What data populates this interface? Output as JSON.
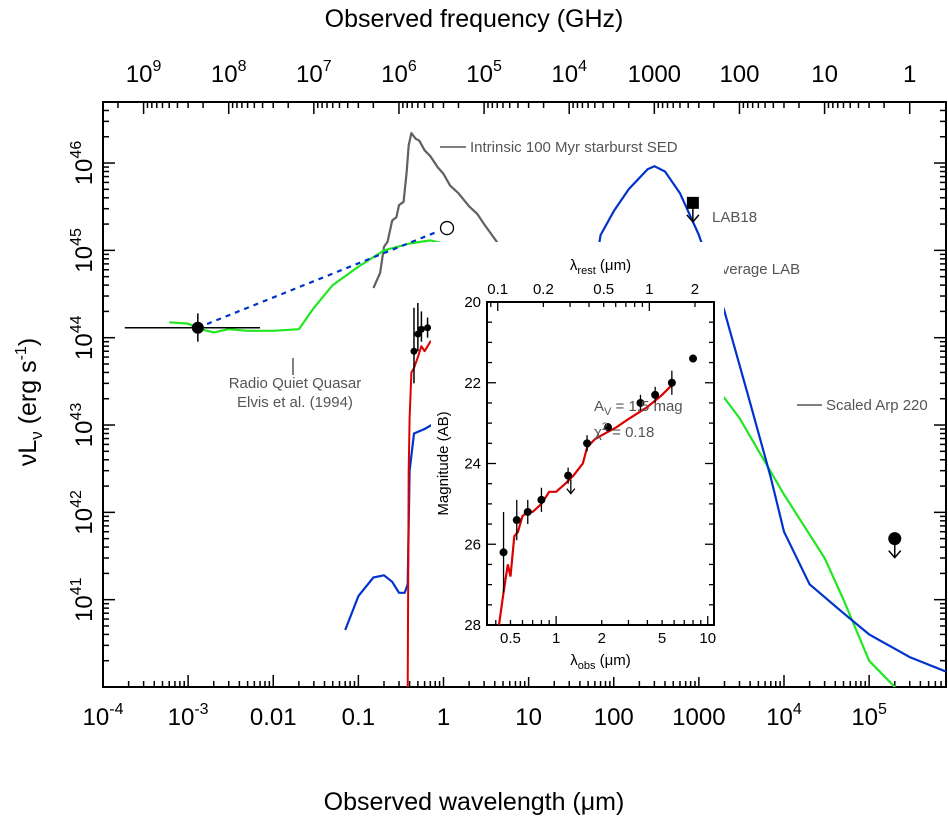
{
  "chart_data": {
    "type": "line",
    "x_axis": {
      "title": "Observed wavelength (μm)",
      "scale": "log",
      "range": [
        0.0001,
        800000
      ],
      "ticks": [
        {
          "value": 0.0001,
          "base": "10",
          "exp": "-4"
        },
        {
          "value": 0.001,
          "base": "10",
          "exp": "-3"
        },
        {
          "value": 0.01,
          "base": "0.01",
          "exp": ""
        },
        {
          "value": 0.1,
          "base": "0.1",
          "exp": ""
        },
        {
          "value": 1,
          "base": "1",
          "exp": ""
        },
        {
          "value": 10,
          "base": "10",
          "exp": ""
        },
        {
          "value": 100,
          "base": "100",
          "exp": ""
        },
        {
          "value": 1000,
          "base": "1000",
          "exp": ""
        },
        {
          "value": 10000,
          "base": "10",
          "exp": "4"
        },
        {
          "value": 100000,
          "base": "10",
          "exp": "5"
        }
      ]
    },
    "top_axis": {
      "title": "Observed frequency (GHz)",
      "scale": "log",
      "ticks": [
        {
          "value": 1000000000,
          "base": "10",
          "exp": "9"
        },
        {
          "value": 100000000,
          "base": "10",
          "exp": "8"
        },
        {
          "value": 10000000,
          "base": "10",
          "exp": "7"
        },
        {
          "value": 1000000,
          "base": "10",
          "exp": "6"
        },
        {
          "value": 100000,
          "base": "10",
          "exp": "5"
        },
        {
          "value": 10000,
          "base": "10",
          "exp": "4"
        },
        {
          "value": 1000,
          "base": "1000",
          "exp": ""
        },
        {
          "value": 100,
          "base": "100",
          "exp": ""
        },
        {
          "value": 10,
          "base": "10",
          "exp": ""
        },
        {
          "value": 1,
          "base": "1",
          "exp": ""
        }
      ]
    },
    "y_axis": {
      "title_prefix": "νL",
      "title_sub": "ν",
      "title_units": " (erg s",
      "title_units_sup": "-1",
      "title_close": ")",
      "scale": "log",
      "range": [
        1e+40,
        5e+46
      ],
      "ticks": [
        {
          "value": 1e+41,
          "base": "10",
          "exp": "41"
        },
        {
          "value": 1e+42,
          "base": "10",
          "exp": "42"
        },
        {
          "value": 1e+43,
          "base": "10",
          "exp": "43"
        },
        {
          "value": 1e+44,
          "base": "10",
          "exp": "44"
        },
        {
          "value": 1e+45,
          "base": "10",
          "exp": "45"
        },
        {
          "value": 1e+46,
          "base": "10",
          "exp": "46"
        }
      ]
    },
    "series": [
      {
        "key": "starburst",
        "color": "#606060",
        "points": [
          [
            0.15,
            3.7e+44
          ],
          [
            0.18,
            5.5e+44
          ],
          [
            0.2,
            1.1e+45
          ],
          [
            0.22,
            1.25e+45
          ],
          [
            0.25,
            2.2e+45
          ],
          [
            0.28,
            2.4e+45
          ],
          [
            0.3,
            3.3e+45
          ],
          [
            0.34,
            3.6e+45
          ],
          [
            0.37,
            8e+45
          ],
          [
            0.39,
            1.6e+46
          ],
          [
            0.42,
            2.2e+46
          ],
          [
            0.47,
            1.9e+46
          ],
          [
            0.52,
            1.8e+46
          ],
          [
            0.6,
            1.4e+46
          ],
          [
            0.7,
            1.2e+46
          ],
          [
            0.85,
            9e+45
          ],
          [
            1.0,
            7.5e+45
          ],
          [
            1.2,
            5.5e+45
          ],
          [
            1.5,
            4.5e+45
          ],
          [
            2.0,
            3.2e+45
          ],
          [
            2.5,
            2.6e+45
          ],
          [
            3.0,
            2e+45
          ],
          [
            4.0,
            1.35e+45
          ],
          [
            5.0,
            1e+45
          ],
          [
            6.0,
            7.5e+44
          ],
          [
            7.0,
            5.5e+44
          ],
          [
            8.0,
            4e+44
          ]
        ]
      },
      {
        "key": "quasar",
        "color": "#22e622",
        "points": [
          [
            0.0006,
            1.5e+44
          ],
          [
            0.001,
            1.45e+44
          ],
          [
            0.0014,
            1.25e+44
          ],
          [
            0.002,
            1.15e+44
          ],
          [
            0.003,
            1.25e+44
          ],
          [
            0.005,
            1.2e+44
          ],
          [
            0.01,
            1.2e+44
          ],
          [
            0.02,
            1.25e+44
          ],
          [
            0.03,
            2.2e+44
          ],
          [
            0.05,
            4e+44
          ],
          [
            0.1,
            6.5e+44
          ],
          [
            0.2,
            1e+45
          ],
          [
            0.4,
            1.2e+45
          ],
          [
            0.7,
            1.3e+45
          ],
          [
            1.0,
            1.2e+45
          ],
          [
            1.3,
            1e+45
          ],
          [
            2.0,
            6e+44
          ],
          [
            3.0,
            4.2e+44
          ],
          [
            5.0,
            3.3e+44
          ],
          [
            7.0,
            4.8e+44
          ],
          [
            10,
            6.8e+44
          ],
          [
            20,
            7.3e+44
          ],
          [
            40,
            7.8e+44
          ],
          [
            60,
            7.3e+44
          ],
          [
            100,
            6.2e+44
          ],
          [
            200,
            3.6e+44
          ],
          [
            500,
            1.3e+44
          ],
          [
            1000,
            5e+43
          ],
          [
            3000,
            1.2e+43
          ],
          [
            10000,
            1.6e+42
          ],
          [
            30000,
            3e+41
          ],
          [
            50000,
            1e+41
          ],
          [
            100000,
            2e+40
          ],
          [
            400000,
            5e+39
          ]
        ]
      },
      {
        "key": "arp220",
        "color": "#0033cc",
        "points": [
          [
            0.07,
            4.5e+40
          ],
          [
            0.1,
            1.1e+41
          ],
          [
            0.15,
            1.8e+41
          ],
          [
            0.2,
            1.9e+41
          ],
          [
            0.25,
            1.6e+41
          ],
          [
            0.3,
            1.2e+41
          ],
          [
            0.35,
            1.2e+41
          ],
          [
            0.38,
            1.5e+41
          ],
          [
            0.4,
            3e+42
          ],
          [
            0.45,
            8e+42
          ],
          [
            0.6,
            9e+42
          ],
          [
            1.0,
            1.2e+43
          ],
          [
            1.5,
            4e+43
          ],
          [
            2.0,
            1.1e+44
          ],
          [
            2.5,
            1.6e+44
          ],
          [
            3.5,
            2.1e+44
          ],
          [
            5.0,
            2.5e+44
          ],
          [
            7.0,
            2.4e+44
          ],
          [
            10,
            1.4e+44
          ],
          [
            14,
            7e+43
          ],
          [
            18,
            6e+43
          ],
          [
            22,
            1.2e+44
          ],
          [
            25,
            5e+44
          ],
          [
            30,
            9e+44
          ],
          [
            33,
            4e+44
          ],
          [
            38,
            1.4e+44
          ],
          [
            45,
            5e+44
          ],
          [
            50,
            9e+44
          ],
          [
            60,
            6e+44
          ],
          [
            70,
            1.5e+45
          ],
          [
            100,
            2.8e+45
          ],
          [
            150,
            5e+45
          ],
          [
            250,
            8.5e+45
          ],
          [
            300,
            9.2e+45
          ],
          [
            400,
            8e+45
          ],
          [
            600,
            4.5e+45
          ],
          [
            1000,
            1.5e+45
          ],
          [
            2000,
            2e+44
          ],
          [
            4000,
            1.8e+43
          ],
          [
            7000,
            2.5e+42
          ],
          [
            10000,
            6e+41
          ],
          [
            20000,
            1.5e+41
          ],
          [
            50000,
            7e+40
          ],
          [
            100000,
            4e+40
          ],
          [
            300000,
            2.2e+40
          ],
          [
            800000,
            1.5e+40
          ]
        ]
      },
      {
        "key": "fit",
        "color": "#dd0000",
        "points": [
          [
            0.38,
            1e+40
          ],
          [
            0.39,
            3e+42
          ],
          [
            0.4,
            1.2e+43
          ],
          [
            0.42,
            4e+43
          ],
          [
            0.45,
            4.5e+43
          ],
          [
            0.5,
            6e+43
          ],
          [
            0.55,
            8e+43
          ],
          [
            0.6,
            7e+43
          ],
          [
            0.7,
            9e+43
          ],
          [
            0.8,
            9.5e+43
          ],
          [
            1.0,
            1.1e+44
          ],
          [
            1.3,
            1.35e+44
          ],
          [
            1.6,
            1.7e+44
          ],
          [
            2.0,
            1.9e+44
          ],
          [
            3.0,
            2.4e+44
          ],
          [
            4.0,
            2.65e+44
          ],
          [
            5.0,
            2.8e+44
          ]
        ]
      },
      {
        "key": "quasar-extrapolation",
        "color": "#0033cc",
        "dashed": true,
        "points": [
          [
            0.0013,
            1.3e+44
          ],
          [
            0.8,
            1.6e+45
          ]
        ]
      }
    ],
    "photometry": [
      {
        "x": 0.0013,
        "y": 1.3e+44,
        "ylo": 9e+43,
        "yhi": 1.9e+44,
        "xlo": 0.00018,
        "xhi": 0.007
      },
      {
        "x": 0.45,
        "y": 7e+43,
        "ylo": 3e+43,
        "yhi": 2.2e+44
      },
      {
        "x": 0.5,
        "y": 1.1e+44,
        "ylo": 7e+43,
        "yhi": 2.5e+44
      },
      {
        "x": 0.55,
        "y": 1.25e+44,
        "ylo": 9e+43,
        "yhi": 2e+44
      },
      {
        "x": 0.65,
        "y": 1.3e+44,
        "ylo": 1e+44,
        "yhi": 1.7e+44
      },
      {
        "x": 0.8,
        "y": 1.3e+44,
        "ylo": 1.05e+44,
        "yhi": 1.6e+44
      },
      {
        "x": 1.2,
        "y": 1.5e+44,
        "ylo": 1.3e+44,
        "yhi": 1.75e+44
      },
      {
        "x": 1.6,
        "y": 2e+44,
        "ylo": 1.7e+44,
        "yhi": 2.4e+44
      },
      {
        "x": 2.2,
        "y": 2.1e+44,
        "ylo": 1.85e+44,
        "yhi": 2.5e+44
      },
      {
        "x": 3.6,
        "y": 2.6e+44,
        "ylo": 2.2e+44,
        "yhi": 3.1e+44
      },
      {
        "x": 4.5,
        "y": 2.8e+44,
        "ylo": 2.3e+44,
        "yhi": 3.3e+44
      },
      {
        "x": 5.8,
        "y": 2.7e+44,
        "ylo": 2e+44,
        "yhi": 3.2e+44
      },
      {
        "x": 8.0,
        "y": 3e+44,
        "ylo": 2.6e+44,
        "yhi": 3.5e+44
      }
    ],
    "upper_limits": [
      {
        "x": 24,
        "y": 5.5e+44,
        "marker": "circle"
      },
      {
        "x": 850,
        "y": 1e+45,
        "marker": "circle"
      },
      {
        "x": 850,
        "y": 3.5e+45,
        "marker": "square"
      },
      {
        "x": 200000,
        "y": 5e+41,
        "marker": "circle"
      }
    ],
    "open_circle": {
      "x": 1.1,
      "y": 1.8e+45
    },
    "annotations": [
      {
        "key": "starburst-label",
        "text": "Intrinsic 100 Myr starburst SED"
      },
      {
        "key": "quasar-label-1",
        "text": "Radio Quiet Quasar"
      },
      {
        "key": "quasar-label-2",
        "text": "Elvis et al. (1994)"
      },
      {
        "key": "arp-label",
        "text": "Scaled Arp 220"
      },
      {
        "key": "lab18-label",
        "text": "LAB18"
      },
      {
        "key": "avg-lab-label",
        "text": "Average LAB"
      }
    ],
    "inset": {
      "type": "scatter",
      "x_title": "λ",
      "x_title_sub": "obs",
      "x_title_units": " (μm)",
      "top_title": "λ",
      "top_title_sub": "rest",
      "top_title_units": " (μm)",
      "y_title": "Magnitude (AB)",
      "x_range": [
        0.35,
        11
      ],
      "y_range": [
        28,
        20
      ],
      "x_ticks": [
        {
          "value": 0.5,
          "label": "0.5"
        },
        {
          "value": 1,
          "label": "1"
        },
        {
          "value": 2,
          "label": "2"
        },
        {
          "value": 5,
          "label": "5"
        },
        {
          "value": 10,
          "label": "10"
        }
      ],
      "top_ticks": [
        {
          "value": 0.1,
          "label": "0.1"
        },
        {
          "value": 0.2,
          "label": "0.2"
        },
        {
          "value": 0.5,
          "label": "0.5"
        },
        {
          "value": 1,
          "label": "1"
        },
        {
          "value": 2,
          "label": "2"
        }
      ],
      "y_ticks": [
        {
          "value": 20,
          "label": "20"
        },
        {
          "value": 22,
          "label": "22"
        },
        {
          "value": 24,
          "label": "24"
        },
        {
          "value": 26,
          "label": "26"
        },
        {
          "value": 28,
          "label": "28"
        }
      ],
      "av_text_prefix": "A",
      "av_text_sub": "V",
      "av_text_rest": " = 1.5 mag",
      "chi_text_prefix": "χ",
      "chi_text_sup": "2",
      "chi_text_rest": " = 0.18",
      "fit_line": [
        [
          0.42,
          28
        ],
        [
          0.45,
          27.2
        ],
        [
          0.48,
          26.5
        ],
        [
          0.5,
          26.8
        ],
        [
          0.53,
          25.8
        ],
        [
          0.56,
          25.7
        ],
        [
          0.6,
          25.3
        ],
        [
          0.65,
          25.2
        ],
        [
          0.7,
          25.2
        ],
        [
          0.8,
          25
        ],
        [
          0.9,
          24.7
        ],
        [
          1.0,
          24.7
        ],
        [
          1.15,
          24.5
        ],
        [
          1.3,
          24.3
        ],
        [
          1.5,
          24.0
        ],
        [
          1.6,
          23.6
        ],
        [
          1.8,
          23.4
        ],
        [
          2.0,
          23.3
        ],
        [
          2.5,
          23.1
        ],
        [
          3.0,
          22.9
        ],
        [
          4.0,
          22.6
        ],
        [
          5.0,
          22.3
        ],
        [
          6.0,
          22.0
        ]
      ],
      "points": [
        {
          "x": 0.45,
          "y": 26.2,
          "err": 1.0
        },
        {
          "x": 0.55,
          "y": 25.4,
          "err": 0.5
        },
        {
          "x": 0.65,
          "y": 25.2,
          "err": 0.3
        },
        {
          "x": 0.8,
          "y": 24.9,
          "err": 0.3
        },
        {
          "x": 1.2,
          "y": 24.3,
          "err": 0.2
        },
        {
          "x": 1.6,
          "y": 23.5,
          "err": 0.2
        },
        {
          "x": 2.2,
          "y": 23.1,
          "err": 0.1
        },
        {
          "x": 3.6,
          "y": 22.5,
          "err": 0.2
        },
        {
          "x": 4.5,
          "y": 22.3,
          "err": 0.2
        },
        {
          "x": 5.8,
          "y": 22.0,
          "err": 0.3
        },
        {
          "x": 8.0,
          "y": 21.4,
          "err": 0.1
        }
      ],
      "upper_limit": {
        "x": 1.25,
        "y": 24.4
      }
    }
  }
}
